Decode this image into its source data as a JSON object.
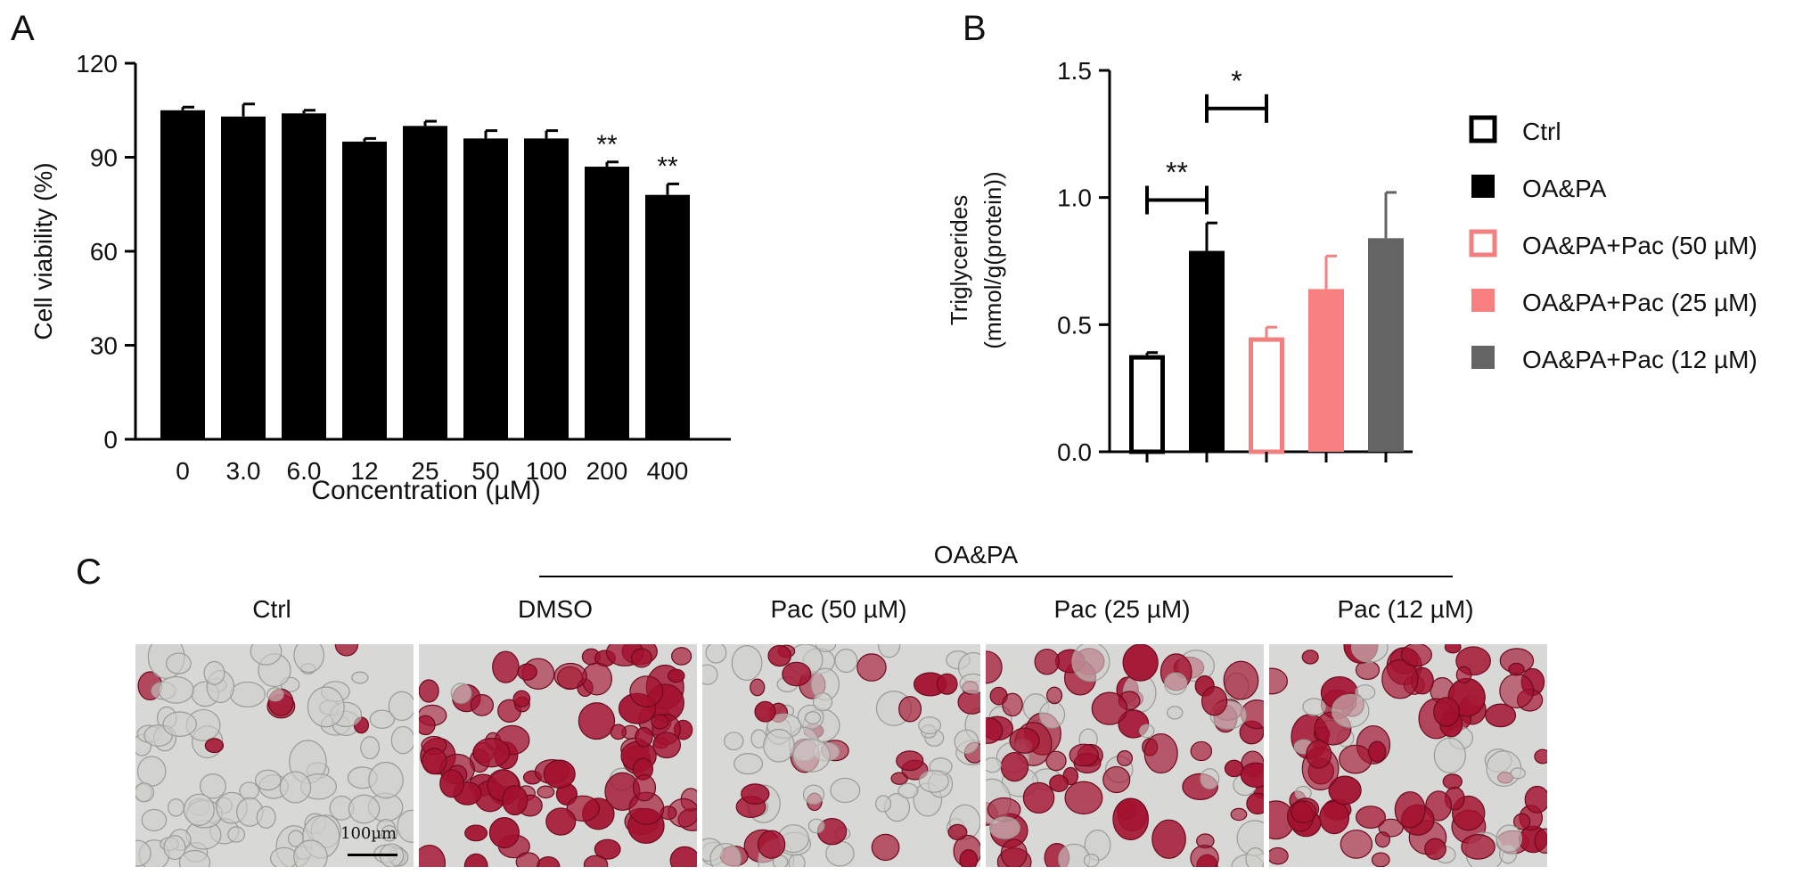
{
  "panel_letters": {
    "a": "A",
    "b": "B",
    "c": "C"
  },
  "chart_data": [
    {
      "type": "bar",
      "panel": "A",
      "title": "",
      "xlabel": "Concentration (µM)",
      "ylabel": "Cell viability (%)",
      "ylim": [
        0,
        120
      ],
      "yticks": [
        "0",
        "30",
        "60",
        "90",
        "120"
      ],
      "categories": [
        "0",
        "3.0",
        "6.0",
        "12",
        "25",
        "50",
        "100",
        "200",
        "400"
      ],
      "values": [
        105,
        103,
        104,
        95,
        100,
        96,
        96,
        87,
        78
      ],
      "errors": [
        1,
        4,
        1,
        1,
        1.5,
        2.5,
        2.5,
        1.5,
        3.5
      ],
      "annotations": [
        "",
        "",
        "",
        "",
        "",
        "",
        "",
        "**",
        "**"
      ],
      "bar_color": "#000000",
      "grid": false
    },
    {
      "type": "bar",
      "panel": "B",
      "title": "",
      "xlabel": "",
      "ylabel": "Triglycerides (mmol/g(protein))",
      "ylabel_lines": [
        "Triglycerides",
        "(mmol/g(protein))"
      ],
      "ylim": [
        0,
        1.5
      ],
      "yticks": [
        "0.0",
        "0.5",
        "1.0",
        "1.5"
      ],
      "categories": [
        "Ctrl",
        "OA&PA",
        "OA&PA+Pac (50 µM)",
        "OA&PA+Pac (25 µM)",
        "OA&PA+Pac (12 µM)"
      ],
      "values": [
        0.38,
        0.79,
        0.45,
        0.64,
        0.84
      ],
      "errors": [
        0.01,
        0.11,
        0.04,
        0.13,
        0.18
      ],
      "styles": [
        {
          "fill": "#ffffff",
          "stroke": "#000000"
        },
        {
          "fill": "#000000",
          "stroke": "#000000"
        },
        {
          "fill": "#ffffff",
          "stroke": "#f28080"
        },
        {
          "fill": "#f98080",
          "stroke": "#f98080"
        },
        {
          "fill": "#646464",
          "stroke": "#646464"
        }
      ],
      "significance": [
        {
          "from": 0,
          "to": 1,
          "label": "**",
          "level": 0.99
        },
        {
          "from": 1,
          "to": 2,
          "label": "*",
          "level": 1.35
        }
      ],
      "legend": {
        "placement": "right",
        "entries": [
          "Ctrl",
          "OA&PA",
          "OA&PA+Pac (50 µM)",
          "OA&PA+Pac (25 µM)",
          "OA&PA+Pac (12 µM)"
        ]
      },
      "grid": false
    }
  ],
  "panel_c": {
    "group_label": "OA&PA",
    "headers": [
      "Ctrl",
      "DMSO",
      "Pac (50 µM)",
      "Pac (25 µM)",
      "Pac (12 µM)"
    ],
    "stain_density": [
      0.05,
      0.95,
      0.35,
      0.7,
      0.85
    ],
    "stain_color": "#a3112f",
    "background_color": "#d8d8d6",
    "scale_bar_label": "100µm"
  }
}
